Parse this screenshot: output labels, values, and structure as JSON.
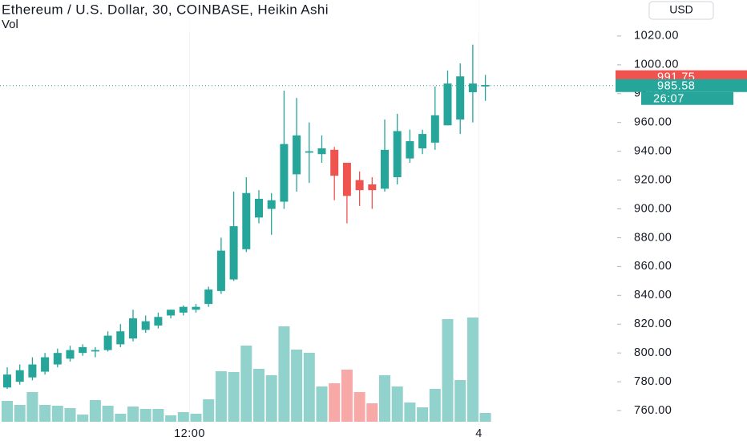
{
  "chart_data": {
    "type": "candlestick",
    "title": "Ethereum / U.S. Dollar, 30, COINBASE, Heikin Ashi",
    "subtitle": "Vol",
    "currency": "USD",
    "categories": [
      null,
      null,
      null,
      null,
      null,
      null,
      null,
      null,
      null,
      null,
      null,
      null,
      null,
      null,
      null,
      "12:00",
      null,
      null,
      null,
      null,
      null,
      null,
      null,
      null,
      null,
      null,
      null,
      null,
      null,
      null,
      null,
      null,
      null,
      null,
      null,
      null,
      null,
      null,
      "4"
    ],
    "open": [
      776,
      780,
      783,
      787,
      792,
      796,
      800,
      801,
      802,
      806,
      810,
      816,
      819,
      826,
      828,
      830,
      834,
      843,
      851,
      872,
      894,
      900,
      905,
      924,
      939,
      938,
      941,
      932,
      920,
      917,
      914,
      922,
      935,
      942,
      946,
      958,
      962,
      981,
      985
    ],
    "high": [
      790,
      792,
      797,
      800,
      803,
      805,
      806,
      804,
      815,
      820,
      830,
      826,
      828,
      830,
      833,
      834,
      846,
      880,
      912,
      922,
      913,
      911,
      982,
      977,
      960,
      951,
      943,
      932,
      926,
      922,
      962,
      966,
      955,
      955,
      985,
      996,
      1001,
      1014,
      993
    ],
    "low": [
      775,
      778,
      781,
      785,
      790,
      794,
      798,
      797,
      801,
      804,
      808,
      814,
      817,
      824,
      826,
      828,
      832,
      841,
      850,
      870,
      890,
      882,
      900,
      912,
      918,
      932,
      906,
      890,
      902,
      900,
      912,
      917,
      932,
      938,
      941,
      958,
      952,
      960,
      975
    ],
    "close": [
      785,
      788,
      792,
      797,
      800,
      802,
      804,
      802,
      812,
      815,
      824,
      822,
      825,
      830,
      832,
      832,
      844,
      871,
      888,
      911,
      907,
      906,
      945,
      951,
      940,
      942,
      923,
      909,
      913,
      913,
      941,
      954,
      947,
      952,
      965,
      987,
      992,
      987,
      986
    ],
    "volume": [
      26,
      21,
      37,
      21,
      20,
      17,
      9,
      27,
      20,
      10,
      19,
      16,
      16,
      8,
      12,
      10,
      28,
      63,
      62,
      95,
      66,
      58,
      119,
      90,
      86,
      44,
      48,
      65,
      37,
      23,
      58,
      44,
      24,
      18,
      41,
      128,
      52,
      130,
      11
    ],
    "up_color": "#26a69a",
    "down_color": "#ef5350",
    "ylim": [
      750,
      1045
    ],
    "yticks": [
      {
        "value": 760,
        "label": "760.00"
      },
      {
        "value": 780,
        "label": "780.00"
      },
      {
        "value": 800,
        "label": "800.00"
      },
      {
        "value": 820,
        "label": "820.00"
      },
      {
        "value": 840,
        "label": "840.00"
      },
      {
        "value": 860,
        "label": "860.00"
      },
      {
        "value": 880,
        "label": "880.00"
      },
      {
        "value": 900,
        "label": "900.00"
      },
      {
        "value": 920,
        "label": "920.00"
      },
      {
        "value": 940,
        "label": "940.00"
      },
      {
        "value": 960,
        "label": "960.00"
      },
      {
        "value": 980,
        "label": "980.00"
      },
      {
        "value": 1000,
        "label": "1000.00"
      },
      {
        "value": 1020,
        "label": "1020.00"
      }
    ],
    "volume_ylim": [
      0,
      400
    ],
    "price_markers": [
      {
        "value": 991.75,
        "color": "#ef5350"
      },
      {
        "value": 985.58,
        "color": "#26a69a"
      }
    ],
    "countdown": "26:07"
  }
}
